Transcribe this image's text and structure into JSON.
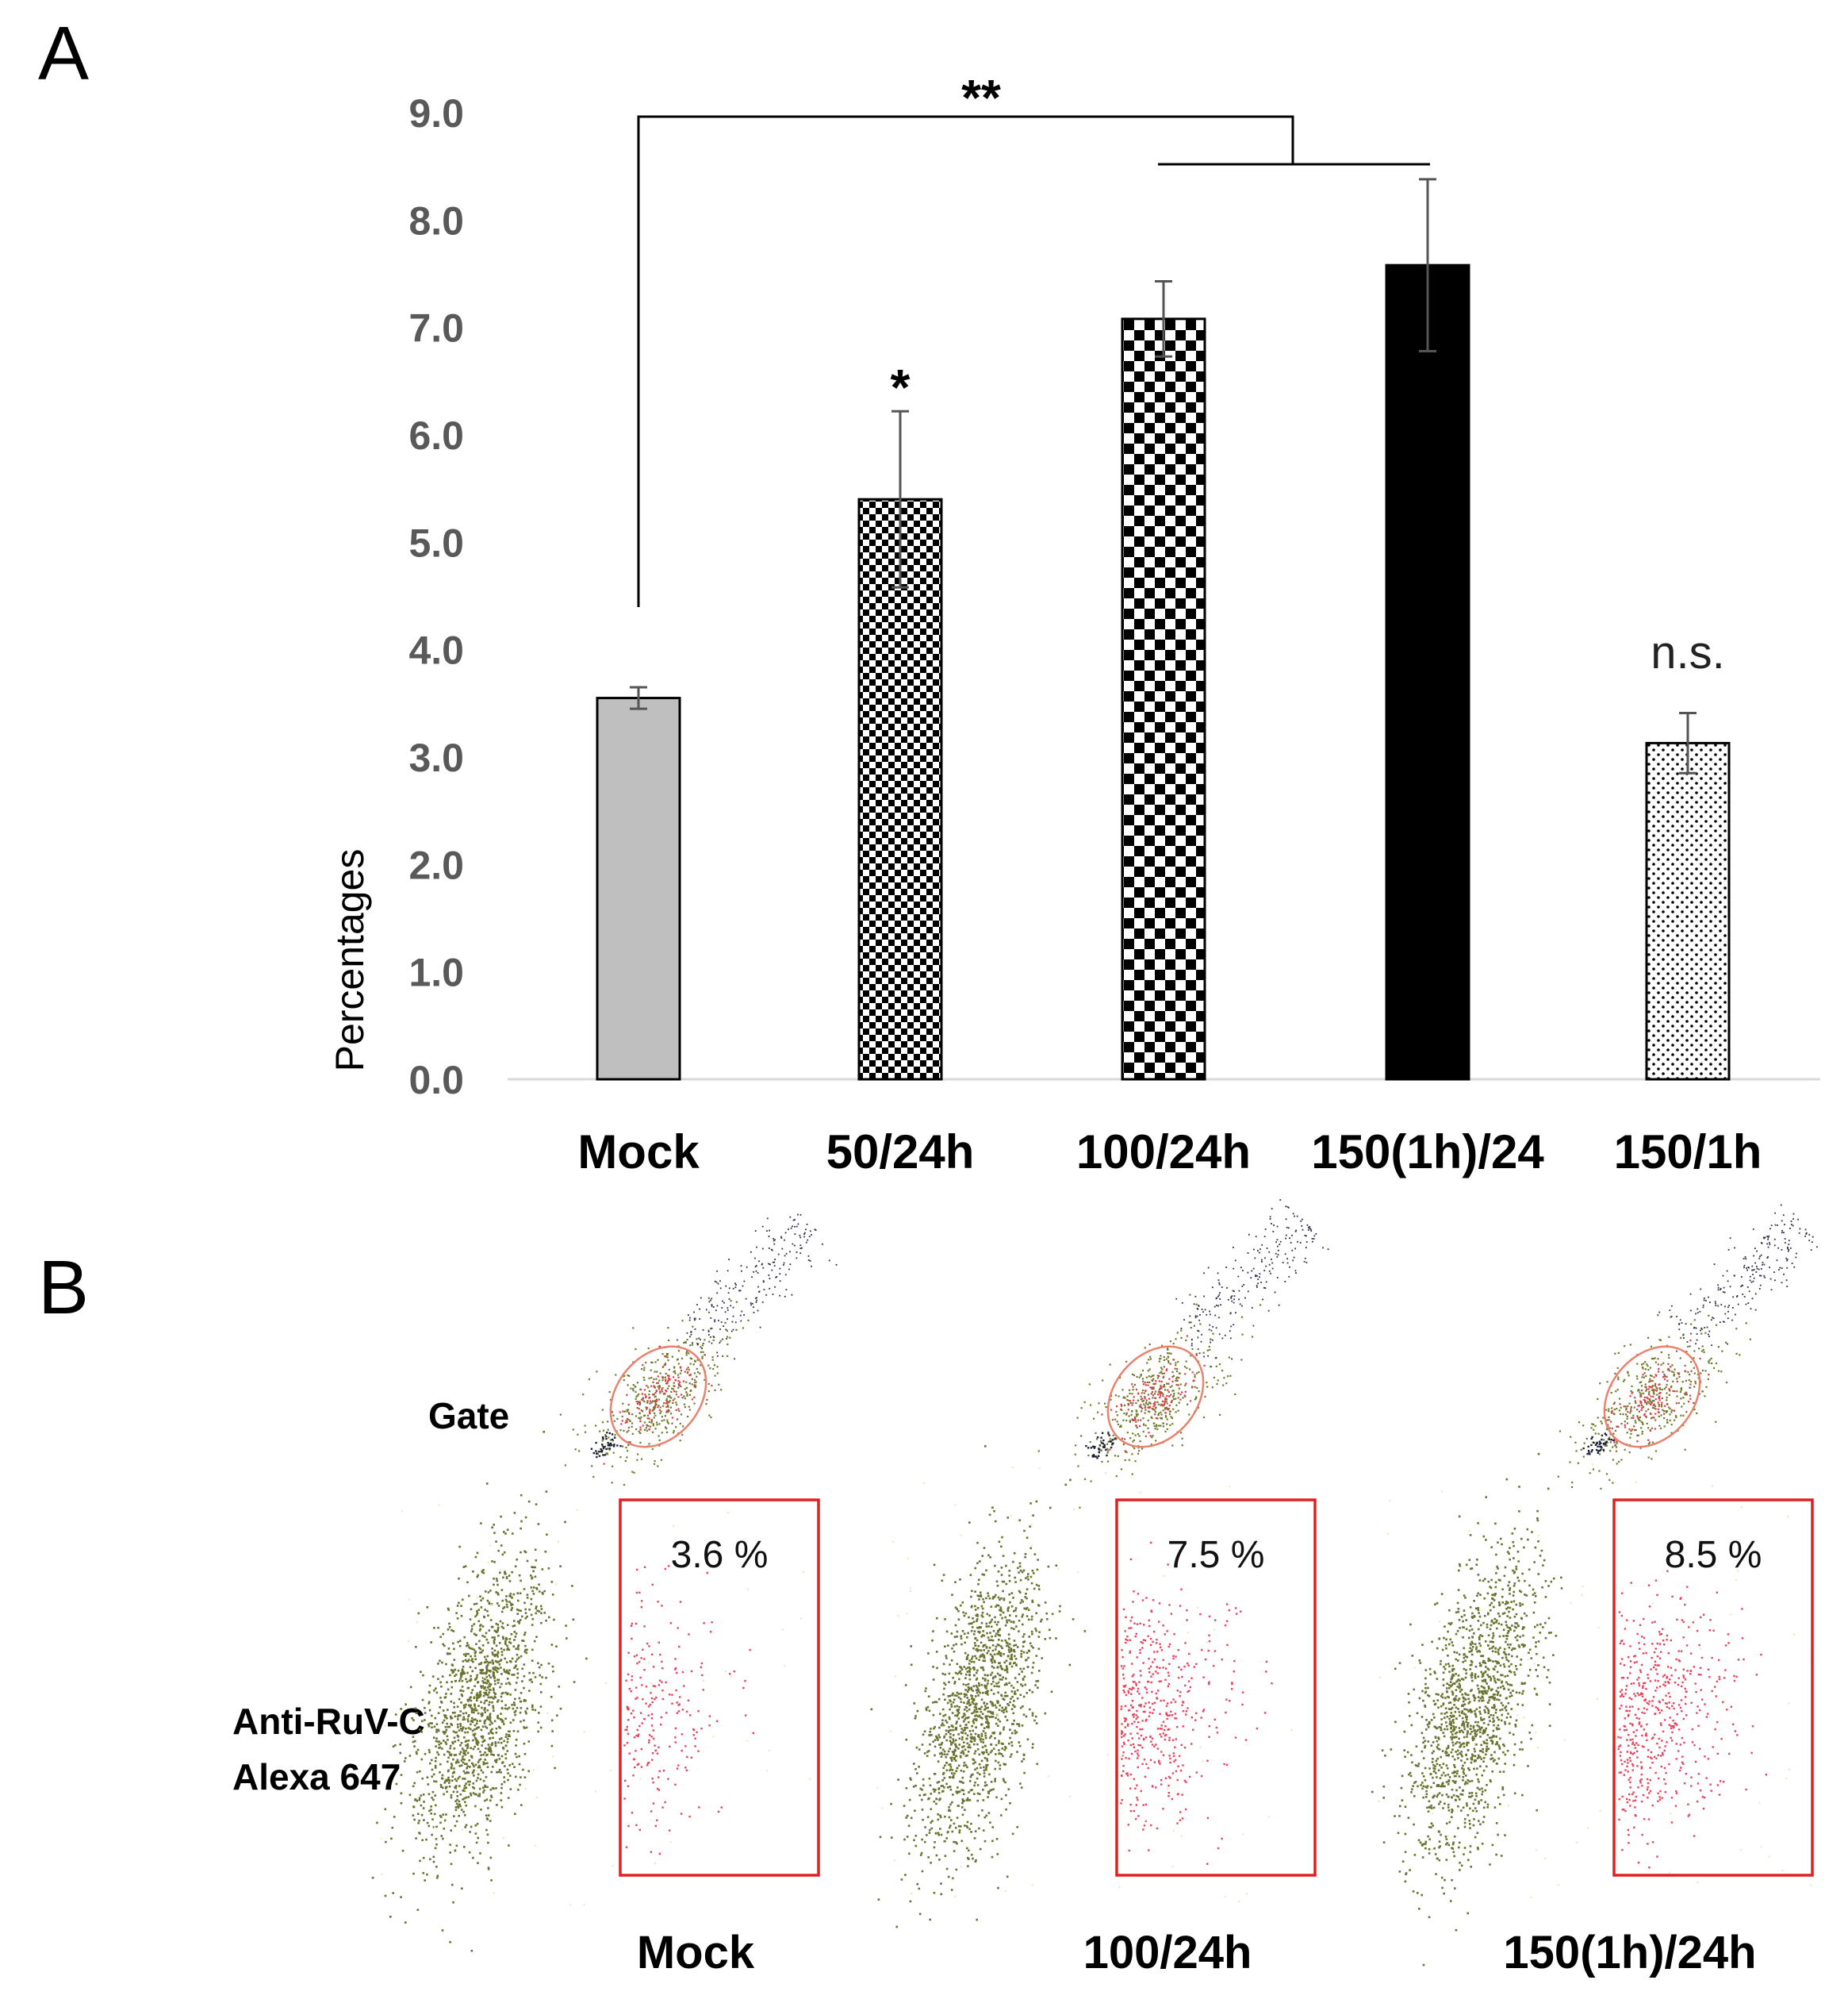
{
  "panels": {
    "a": "A",
    "b": "B"
  },
  "chart_data": {
    "type": "bar",
    "title": "",
    "xlabel": "",
    "ylabel": "Percentages",
    "ylim": [
      0,
      9
    ],
    "yticks": [
      "0.0",
      "1.0",
      "2.0",
      "3.0",
      "4.0",
      "5.0",
      "6.0",
      "7.0",
      "8.0",
      "9.0"
    ],
    "categories": [
      "Mock",
      "50/24h",
      "100/24h",
      "150(1h)/24",
      "150/1h"
    ],
    "values": [
      3.55,
      5.4,
      7.08,
      7.58,
      3.13
    ],
    "errors": [
      0.1,
      0.82,
      0.35,
      0.8,
      0.28
    ],
    "fills": [
      "solid-gray",
      "fine-checker",
      "coarse-checker",
      "solid-black",
      "dots"
    ],
    "bar_annotations": [
      "",
      "*",
      "",
      "",
      "n.s."
    ],
    "bracket_label": "**",
    "colors": {
      "gray": "#bfbfbf",
      "black": "#000000",
      "axis": "#d9d9d9",
      "tick": "#595959",
      "gate": "#e0201e"
    }
  },
  "flow": {
    "row_labels": {
      "gate": "Gate",
      "stain_line1": "Anti-RuV-C",
      "stain_line2": "Alexa 647"
    },
    "samples": [
      {
        "caption": "Mock",
        "percent": "3.6 %",
        "fraction": 0.036
      },
      {
        "caption": "100/24h",
        "percent": "7.5 %",
        "fraction": 0.075
      },
      {
        "caption": "150(1h)/24h",
        "percent": "8.5 %",
        "fraction": 0.085
      }
    ]
  }
}
